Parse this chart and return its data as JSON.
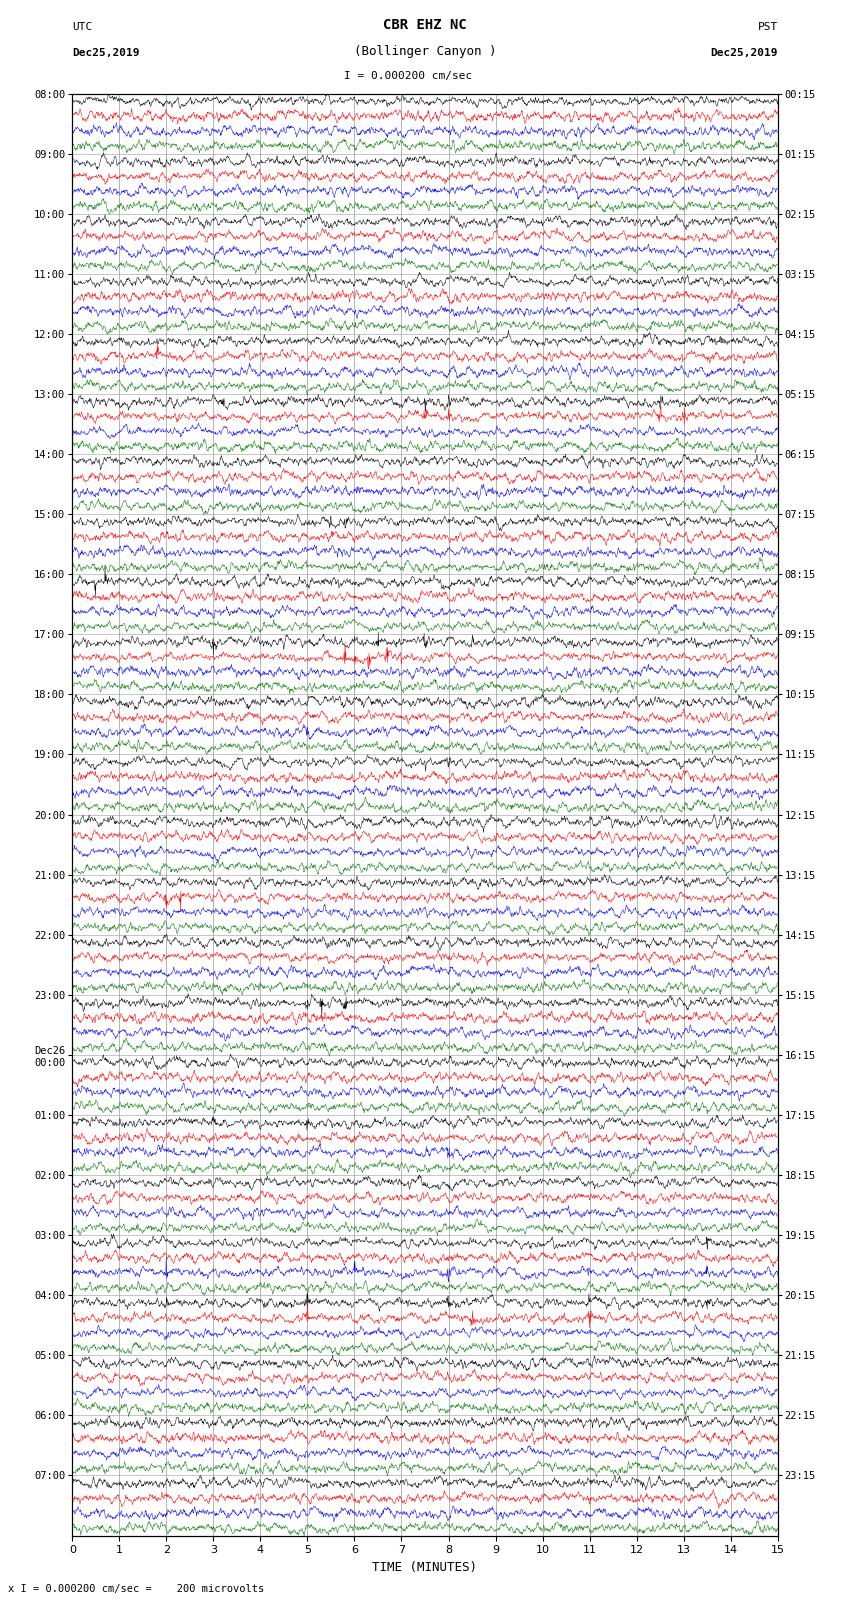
{
  "title_line1": "CBR EHZ NC",
  "title_line2": "(Bollinger Canyon )",
  "scale_label": "I = 0.000200 cm/sec",
  "utc_label": "UTC",
  "utc_date": "Dec25,2019",
  "pst_label": "PST",
  "pst_date": "Dec25,2019",
  "bottom_label": "x I = 0.000200 cm/sec =    200 microvolts",
  "xlabel": "TIME (MINUTES)",
  "left_times": [
    "08:00",
    "09:00",
    "10:00",
    "11:00",
    "12:00",
    "13:00",
    "14:00",
    "15:00",
    "16:00",
    "17:00",
    "18:00",
    "19:00",
    "20:00",
    "21:00",
    "22:00",
    "23:00",
    "Dec26\n00:00",
    "01:00",
    "02:00",
    "03:00",
    "04:00",
    "05:00",
    "06:00",
    "07:00"
  ],
  "right_times": [
    "00:15",
    "01:15",
    "02:15",
    "03:15",
    "04:15",
    "05:15",
    "06:15",
    "07:15",
    "08:15",
    "09:15",
    "10:15",
    "11:15",
    "12:15",
    "13:15",
    "14:15",
    "15:15",
    "16:15",
    "17:15",
    "18:15",
    "19:15",
    "20:15",
    "21:15",
    "22:15",
    "23:15"
  ],
  "num_hour_rows": 24,
  "colors": [
    "black",
    "red",
    "blue",
    "green"
  ],
  "bg_color": "white",
  "fig_width": 8.5,
  "fig_height": 16.13,
  "dpi": 100,
  "xlim": [
    0,
    15
  ],
  "xticks": [
    0,
    1,
    2,
    3,
    4,
    5,
    6,
    7,
    8,
    9,
    10,
    11,
    12,
    13,
    14,
    15
  ],
  "grid_color": "#999999",
  "trace_lw": 0.35
}
